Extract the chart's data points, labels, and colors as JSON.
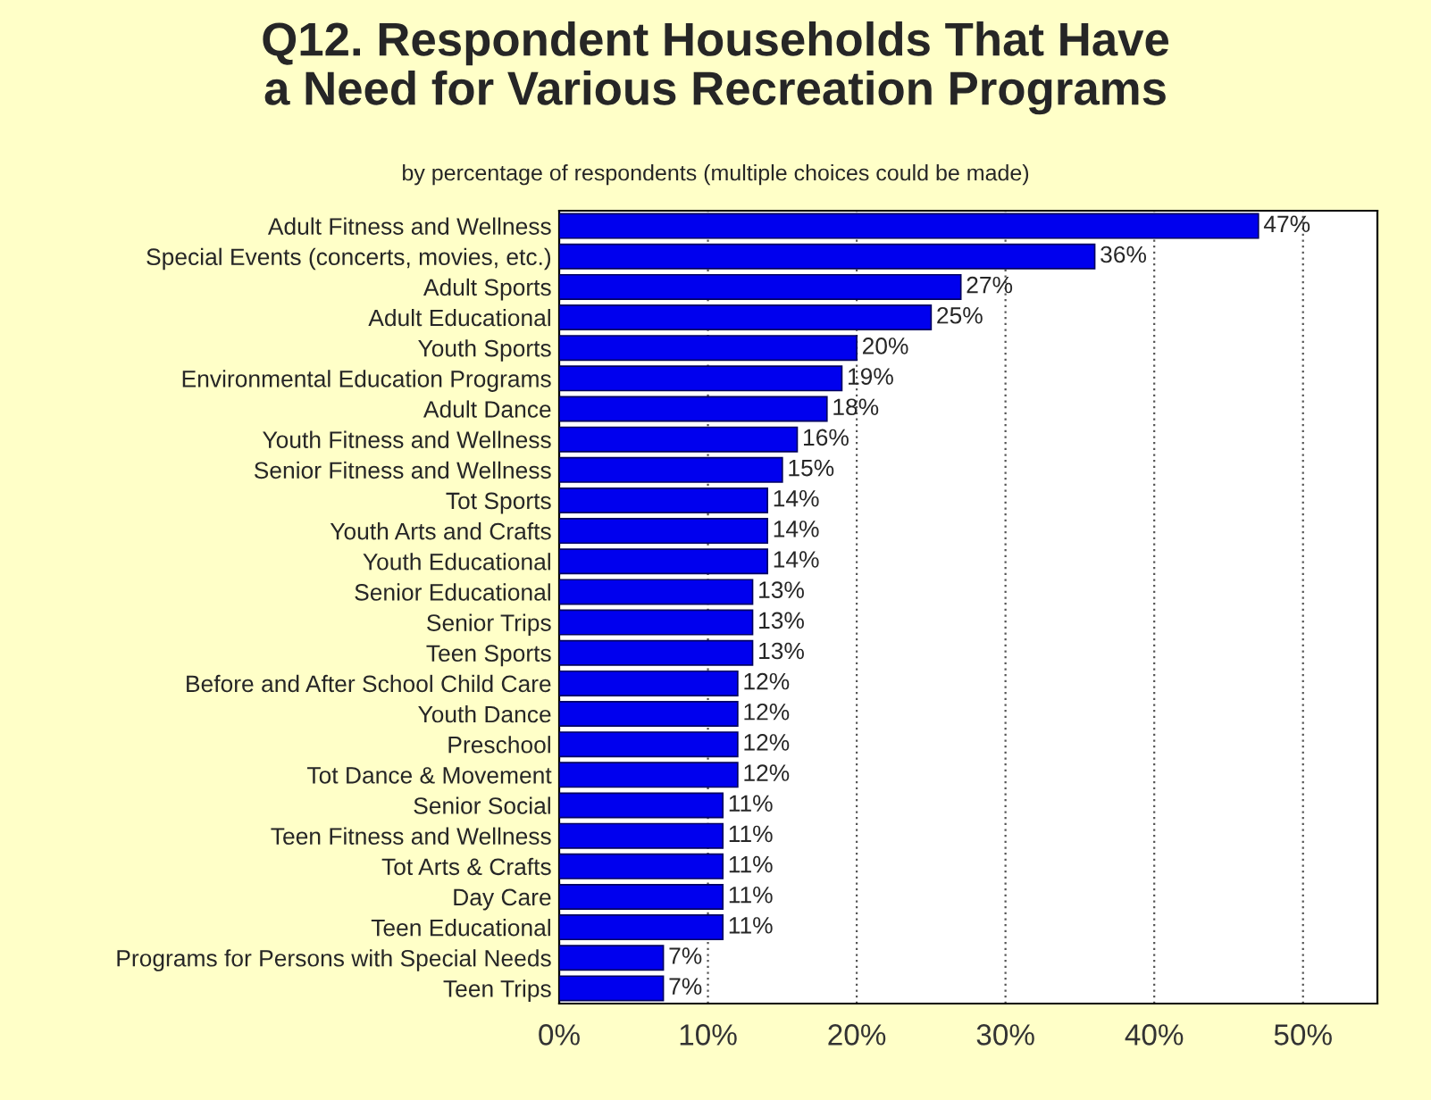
{
  "chart_data": {
    "type": "bar",
    "orientation": "horizontal",
    "title": "Q12. Respondent Households That Have\na Need for Various Recreation Programs",
    "subtitle": "by percentage of respondents (multiple choices could be made)",
    "categories": [
      "Adult Fitness and Wellness",
      "Special Events (concerts, movies, etc.)",
      "Adult Sports",
      "Adult Educational",
      "Youth Sports",
      "Environmental Education Programs",
      "Adult Dance",
      "Youth Fitness and Wellness",
      "Senior Fitness and Wellness",
      "Tot Sports",
      "Youth Arts and Crafts",
      "Youth Educational",
      "Senior Educational",
      "Senior Trips",
      "Teen Sports",
      "Before and After School Child Care",
      "Youth Dance",
      "Preschool",
      "Tot Dance & Movement",
      "Senior Social",
      "Teen Fitness and Wellness",
      "Tot Arts & Crafts",
      "Day Care",
      "Teen Educational",
      "Programs for Persons with Special Needs",
      "Teen Trips"
    ],
    "values": [
      47,
      36,
      27,
      25,
      20,
      19,
      18,
      16,
      15,
      14,
      14,
      14,
      13,
      13,
      13,
      12,
      12,
      12,
      12,
      11,
      11,
      11,
      11,
      11,
      7,
      7
    ],
    "value_labels": [
      "47%",
      "36%",
      "27%",
      "25%",
      "20%",
      "19%",
      "18%",
      "16%",
      "15%",
      "14%",
      "14%",
      "14%",
      "13%",
      "13%",
      "13%",
      "12%",
      "12%",
      "12%",
      "12%",
      "11%",
      "11%",
      "11%",
      "11%",
      "11%",
      "7%",
      "7%"
    ],
    "color": "#0000ee",
    "xlim": [
      0,
      55
    ],
    "xticks": [
      {
        "value": 0,
        "label": "0%"
      },
      {
        "value": 10,
        "label": "10%"
      },
      {
        "value": 20,
        "label": "20%"
      },
      {
        "value": 30,
        "label": "30%"
      },
      {
        "value": 40,
        "label": "40%"
      },
      {
        "value": 50,
        "label": "50%"
      }
    ],
    "grid": "x"
  }
}
